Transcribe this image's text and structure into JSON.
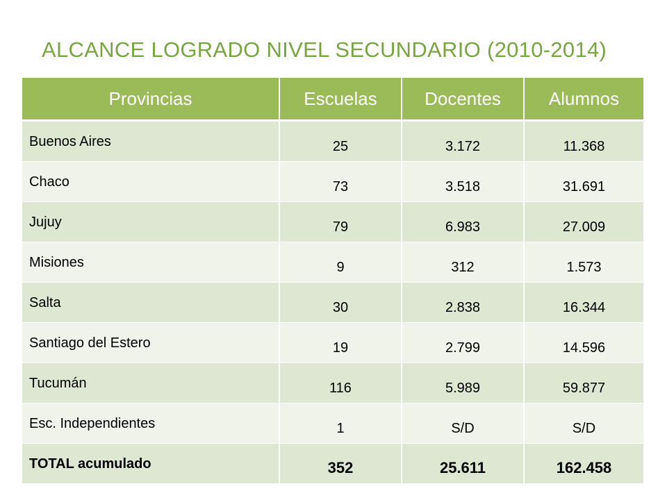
{
  "title": "ALCANCE LOGRADO NIVEL SECUNDARIO (2010-2014)",
  "columns": [
    "Provincias",
    "Escuelas",
    "Docentes",
    "Alumnos"
  ],
  "rows": [
    {
      "provincia": "Buenos Aires",
      "escuelas": "25",
      "docentes": "3.172",
      "alumnos": "11.368"
    },
    {
      "provincia": "Chaco",
      "escuelas": "73",
      "docentes": "3.518",
      "alumnos": "31.691"
    },
    {
      "provincia": "Jujuy",
      "escuelas": "79",
      "docentes": "6.983",
      "alumnos": "27.009"
    },
    {
      "provincia": "Misiones",
      "escuelas": "9",
      "docentes": "312",
      "alumnos": "1.573"
    },
    {
      "provincia": "Salta",
      "escuelas": "30",
      "docentes": "2.838",
      "alumnos": "16.344"
    },
    {
      "provincia": "Santiago del Estero",
      "escuelas": "19",
      "docentes": "2.799",
      "alumnos": "14.596"
    },
    {
      "provincia": "Tucumán",
      "escuelas": "116",
      "docentes": "5.989",
      "alumnos": "59.877"
    },
    {
      "provincia": "Esc. Independientes",
      "escuelas": "1",
      "docentes": "S/D",
      "alumnos": "S/D"
    }
  ],
  "total": {
    "label": "TOTAL acumulado",
    "escuelas": "352",
    "docentes": "25.611",
    "alumnos": "162.458"
  },
  "colors": {
    "title": "#77a63e",
    "header_bg": "#9bbb59",
    "row_dark": "#dee7d1",
    "row_light": "#eff3ea"
  }
}
